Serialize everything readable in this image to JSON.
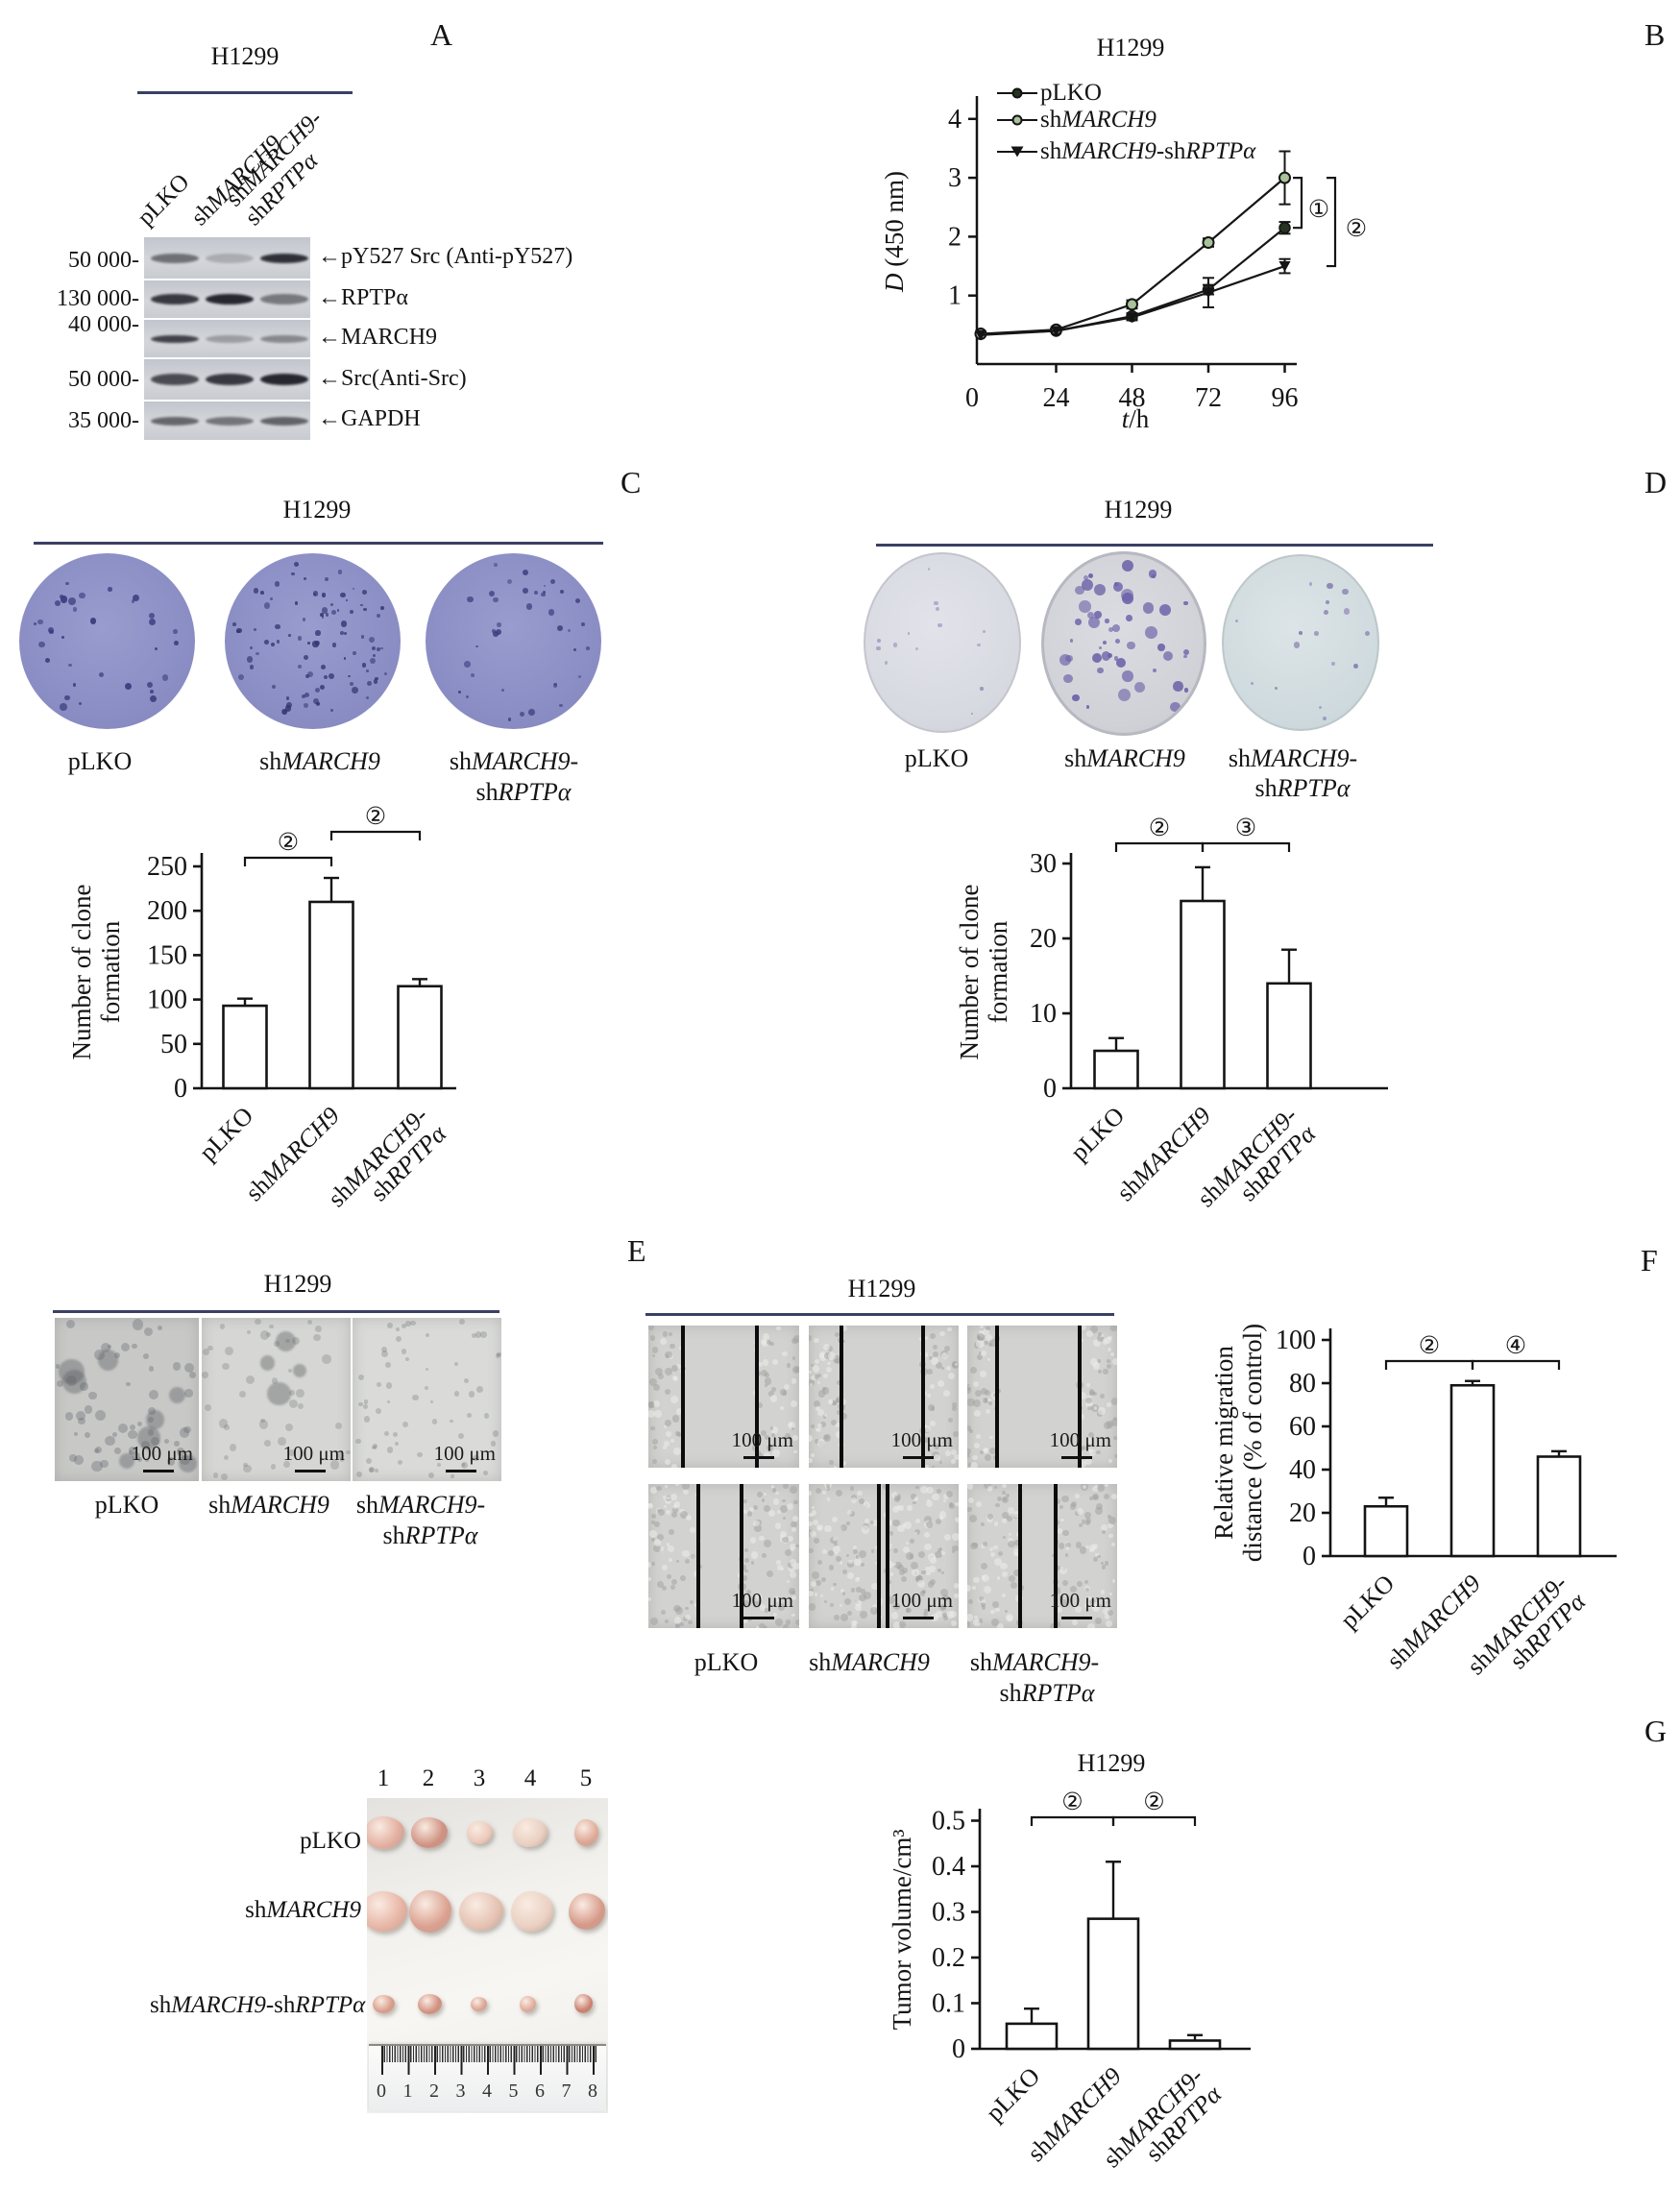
{
  "panel_letters": {
    "A": "A",
    "B": "B",
    "C": "C",
    "D": "D",
    "E": "E",
    "F": "F",
    "G": "G"
  },
  "cell_line": "H1299",
  "groups": [
    "pLKO",
    "shMARCH9",
    "shMARCH9-shRPTPα"
  ],
  "groups_rich": [
    [
      [
        [
          "pLKO",
          0
        ]
      ]
    ],
    [
      [
        [
          "sh",
          0
        ],
        [
          "MARCH9",
          1
        ]
      ]
    ],
    [
      [
        [
          "sh",
          0
        ],
        [
          "MARCH9",
          1
        ],
        [
          "-",
          0
        ]
      ],
      [
        [
          "sh",
          0
        ],
        [
          "RPTPα",
          1
        ]
      ]
    ]
  ],
  "groups_inline_rich": [
    [
      [
        "pLKO",
        0
      ]
    ],
    [
      [
        "sh",
        0
      ],
      [
        "MARCH9",
        1
      ]
    ],
    [
      [
        "sh",
        0
      ],
      [
        "MARCH9",
        1
      ],
      [
        "-sh",
        0
      ],
      [
        "RPTPα",
        1
      ]
    ]
  ],
  "scale_bar_label": "100 μm",
  "panelA": {
    "title": "H1299",
    "rows": [
      {
        "mw": "50 000-",
        "label": "←pY527 Src (Anti-pY527)"
      },
      {
        "mw": "130 000-",
        "label": "←RPTPα"
      },
      {
        "mw": "40 000-",
        "label": "←MARCH9"
      },
      {
        "mw": "50 000-",
        "label": "←Src(Anti-Src)"
      },
      {
        "mw": "35 000-",
        "label": "←GAPDH"
      }
    ]
  },
  "panelC": {
    "title": "H1299"
  },
  "panelD": {
    "title": "H1299"
  },
  "panelE": {
    "left_title": "H1299",
    "right_title": "H1299"
  },
  "panelG": {
    "column_numbers": [
      "1",
      "2",
      "3",
      "4",
      "5"
    ],
    "ruler_numbers": [
      "0",
      "1",
      "2",
      "3",
      "4",
      "5",
      "6",
      "7",
      "8"
    ]
  },
  "chart_data": [
    {
      "id": "B",
      "type": "line",
      "title": "H1299",
      "x": [
        0,
        24,
        48,
        72,
        96
      ],
      "xtick_labels": [
        "0",
        "24",
        "48",
        "72",
        "96"
      ],
      "yticks": [
        1,
        2,
        3,
        4
      ],
      "ytick_labels": [
        "1",
        "2",
        "3",
        "4"
      ],
      "ylim": [
        0,
        4.3
      ],
      "xlabel": "t/h",
      "xlabel_rich": [
        [
          "t",
          1
        ],
        [
          "/h",
          0
        ]
      ],
      "ylabel": "D (450 nm)",
      "ylabel_rich": [
        [
          "D",
          1
        ],
        [
          " (450 nm)",
          0
        ]
      ],
      "legend_position": "top-left",
      "series": [
        {
          "name": "pLKO",
          "marker": "dot",
          "values": [
            0.35,
            0.4,
            0.65,
            1.1,
            2.15
          ],
          "errors": [
            0.02,
            0.02,
            0.05,
            0.08,
            0.1
          ]
        },
        {
          "name": "shMARCH9",
          "marker": "circle",
          "values": [
            0.35,
            0.42,
            0.85,
            1.9,
            3.0
          ],
          "errors": [
            0.02,
            0.02,
            0.07,
            0.07,
            0.45
          ]
        },
        {
          "name": "shMARCH9-shRPTPα",
          "marker": "triangle",
          "values": [
            0.33,
            0.4,
            0.63,
            1.05,
            1.5
          ],
          "errors": [
            0.02,
            0.02,
            0.05,
            0.25,
            0.12
          ]
        }
      ],
      "significance": [
        {
          "label": "①",
          "between": [
            "shMARCH9",
            "pLKO"
          ]
        },
        {
          "label": "②",
          "between": [
            "shMARCH9",
            "shMARCH9-shRPTPα"
          ]
        }
      ]
    },
    {
      "id": "C",
      "type": "bar",
      "categories": [
        "pLKO",
        "shMARCH9",
        "shMARCH9-shRPTPα"
      ],
      "values": [
        93,
        210,
        115
      ],
      "errors": [
        8,
        27,
        8
      ],
      "yticks": [
        0,
        50,
        100,
        150,
        200,
        250
      ],
      "ytick_labels": [
        "0",
        "50",
        "100",
        "150",
        "200",
        "250"
      ],
      "ylim": [
        0,
        250
      ],
      "ylabel": "Number of clone formation",
      "ylabel_lines": [
        "Number of clone",
        "formation"
      ],
      "brackets": [
        {
          "pair": [
            0,
            1
          ],
          "label": "②"
        },
        {
          "pair": [
            1,
            2
          ],
          "label": "②"
        }
      ]
    },
    {
      "id": "D",
      "type": "bar",
      "categories": [
        "pLKO",
        "shMARCH9",
        "shMARCH9-shRPTPα"
      ],
      "values": [
        5,
        25,
        14
      ],
      "errors": [
        1.7,
        4.5,
        4.5
      ],
      "yticks": [
        0,
        10,
        20,
        30
      ],
      "ytick_labels": [
        "0",
        "10",
        "20",
        "30"
      ],
      "ylim": [
        0,
        30
      ],
      "ylabel": "Number of clone formation",
      "ylabel_lines": [
        "Number of clone",
        "formation"
      ],
      "brackets": [
        {
          "pair": [
            0,
            1
          ],
          "label": "②"
        },
        {
          "pair": [
            1,
            2
          ],
          "label": "③"
        }
      ]
    },
    {
      "id": "F",
      "type": "bar",
      "categories": [
        "pLKO",
        "shMARCH9",
        "shMARCH9-shRPTPα"
      ],
      "values": [
        23,
        79,
        46
      ],
      "errors": [
        4,
        2,
        2.5
      ],
      "yticks": [
        0,
        20,
        40,
        60,
        80,
        100
      ],
      "ytick_labels": [
        "0",
        "20",
        "40",
        "60",
        "80",
        "100"
      ],
      "ylim": [
        0,
        100
      ],
      "ylabel": "Relative migration distance (% of control)",
      "ylabel_lines": [
        "Relative migration",
        "distance (% of control)"
      ],
      "brackets": [
        {
          "pair": [
            0,
            1
          ],
          "label": "②"
        },
        {
          "pair": [
            1,
            2
          ],
          "label": "④"
        }
      ]
    },
    {
      "id": "G",
      "type": "bar",
      "title": "H1299",
      "categories": [
        "pLKO",
        "shMARCH9",
        "shMARCH9-shRPTPα"
      ],
      "values": [
        0.055,
        0.285,
        0.018
      ],
      "errors": [
        0.033,
        0.125,
        0.012
      ],
      "yticks": [
        0,
        0.1,
        0.2,
        0.3,
        0.4,
        0.5
      ],
      "ytick_labels": [
        "0",
        "0.1",
        "0.2",
        "0.3",
        "0.4",
        "0.5"
      ],
      "ylim": [
        0,
        0.5
      ],
      "ylabel": "Tumor volume/cm³",
      "ylabel_lines": [
        "Tumor volume/cm³"
      ],
      "brackets": [
        {
          "pair": [
            0,
            1
          ],
          "label": "②"
        },
        {
          "pair": [
            1,
            2
          ],
          "label": "②"
        }
      ]
    }
  ]
}
